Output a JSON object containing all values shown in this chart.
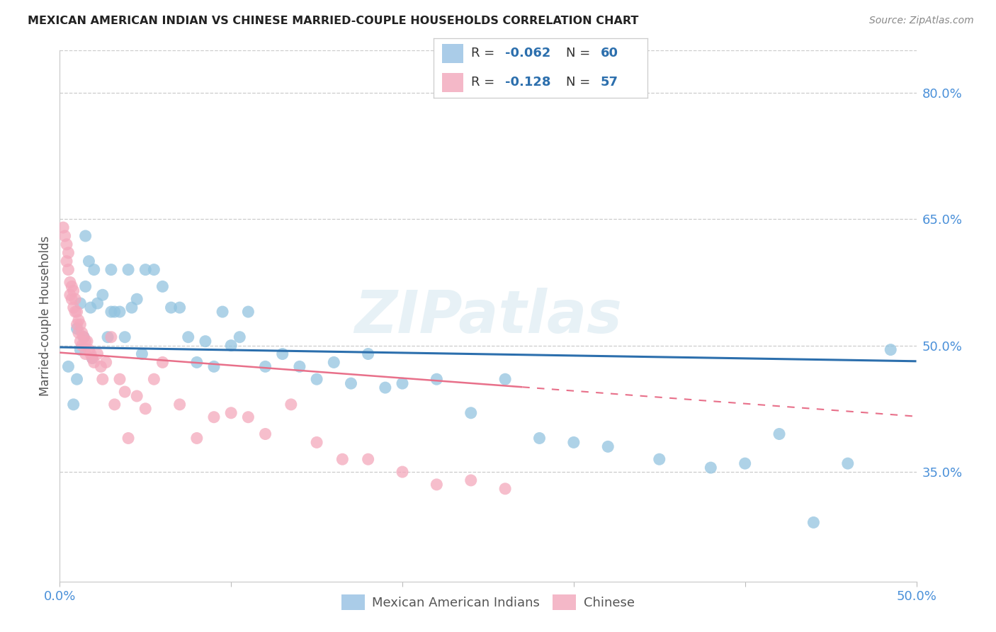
{
  "title": "MEXICAN AMERICAN INDIAN VS CHINESE MARRIED-COUPLE HOUSEHOLDS CORRELATION CHART",
  "source": "Source: ZipAtlas.com",
  "ylabel": "Married-couple Households",
  "xlim": [
    0.0,
    0.5
  ],
  "ylim": [
    0.22,
    0.85
  ],
  "yticks": [
    0.35,
    0.5,
    0.65,
    0.8
  ],
  "ytick_labels": [
    "35.0%",
    "50.0%",
    "65.0%",
    "80.0%"
  ],
  "xticks": [
    0.0,
    0.1,
    0.2,
    0.3,
    0.4,
    0.5
  ],
  "xtick_labels": [
    "0.0%",
    "",
    "",
    "",
    "",
    "50.0%"
  ],
  "blue_color": "#93c4e0",
  "pink_color": "#f4a8bc",
  "blue_line_color": "#2c6fad",
  "pink_line_color": "#e8708a",
  "watermark": "ZIPatlas",
  "blue_x": [
    0.005,
    0.008,
    0.01,
    0.01,
    0.012,
    0.012,
    0.014,
    0.015,
    0.015,
    0.017,
    0.018,
    0.019,
    0.02,
    0.022,
    0.025,
    0.028,
    0.03,
    0.03,
    0.032,
    0.035,
    0.038,
    0.04,
    0.042,
    0.045,
    0.048,
    0.05,
    0.055,
    0.06,
    0.065,
    0.07,
    0.075,
    0.08,
    0.085,
    0.09,
    0.095,
    0.1,
    0.105,
    0.11,
    0.12,
    0.13,
    0.14,
    0.15,
    0.16,
    0.17,
    0.18,
    0.19,
    0.2,
    0.22,
    0.24,
    0.26,
    0.28,
    0.3,
    0.32,
    0.35,
    0.38,
    0.4,
    0.42,
    0.44,
    0.46,
    0.485
  ],
  "blue_y": [
    0.475,
    0.43,
    0.52,
    0.46,
    0.55,
    0.495,
    0.51,
    0.63,
    0.57,
    0.6,
    0.545,
    0.485,
    0.59,
    0.55,
    0.56,
    0.51,
    0.59,
    0.54,
    0.54,
    0.54,
    0.51,
    0.59,
    0.545,
    0.555,
    0.49,
    0.59,
    0.59,
    0.57,
    0.545,
    0.545,
    0.51,
    0.48,
    0.505,
    0.475,
    0.54,
    0.5,
    0.51,
    0.54,
    0.475,
    0.49,
    0.475,
    0.46,
    0.48,
    0.455,
    0.49,
    0.45,
    0.455,
    0.46,
    0.42,
    0.46,
    0.39,
    0.385,
    0.38,
    0.365,
    0.355,
    0.36,
    0.395,
    0.29,
    0.36,
    0.495
  ],
  "pink_x": [
    0.002,
    0.003,
    0.004,
    0.004,
    0.005,
    0.005,
    0.006,
    0.006,
    0.007,
    0.007,
    0.008,
    0.008,
    0.009,
    0.009,
    0.01,
    0.01,
    0.011,
    0.011,
    0.012,
    0.012,
    0.013,
    0.013,
    0.014,
    0.015,
    0.015,
    0.016,
    0.017,
    0.018,
    0.019,
    0.02,
    0.022,
    0.024,
    0.025,
    0.027,
    0.03,
    0.032,
    0.035,
    0.038,
    0.04,
    0.045,
    0.05,
    0.055,
    0.06,
    0.07,
    0.08,
    0.09,
    0.1,
    0.11,
    0.12,
    0.135,
    0.15,
    0.165,
    0.18,
    0.2,
    0.22,
    0.24,
    0.26
  ],
  "pink_y": [
    0.64,
    0.63,
    0.62,
    0.6,
    0.61,
    0.59,
    0.575,
    0.56,
    0.57,
    0.555,
    0.565,
    0.545,
    0.54,
    0.555,
    0.54,
    0.525,
    0.53,
    0.515,
    0.525,
    0.505,
    0.515,
    0.5,
    0.51,
    0.505,
    0.49,
    0.505,
    0.495,
    0.49,
    0.485,
    0.48,
    0.49,
    0.475,
    0.46,
    0.48,
    0.51,
    0.43,
    0.46,
    0.445,
    0.39,
    0.44,
    0.425,
    0.46,
    0.48,
    0.43,
    0.39,
    0.415,
    0.42,
    0.415,
    0.395,
    0.43,
    0.385,
    0.365,
    0.365,
    0.35,
    0.335,
    0.34,
    0.33
  ]
}
